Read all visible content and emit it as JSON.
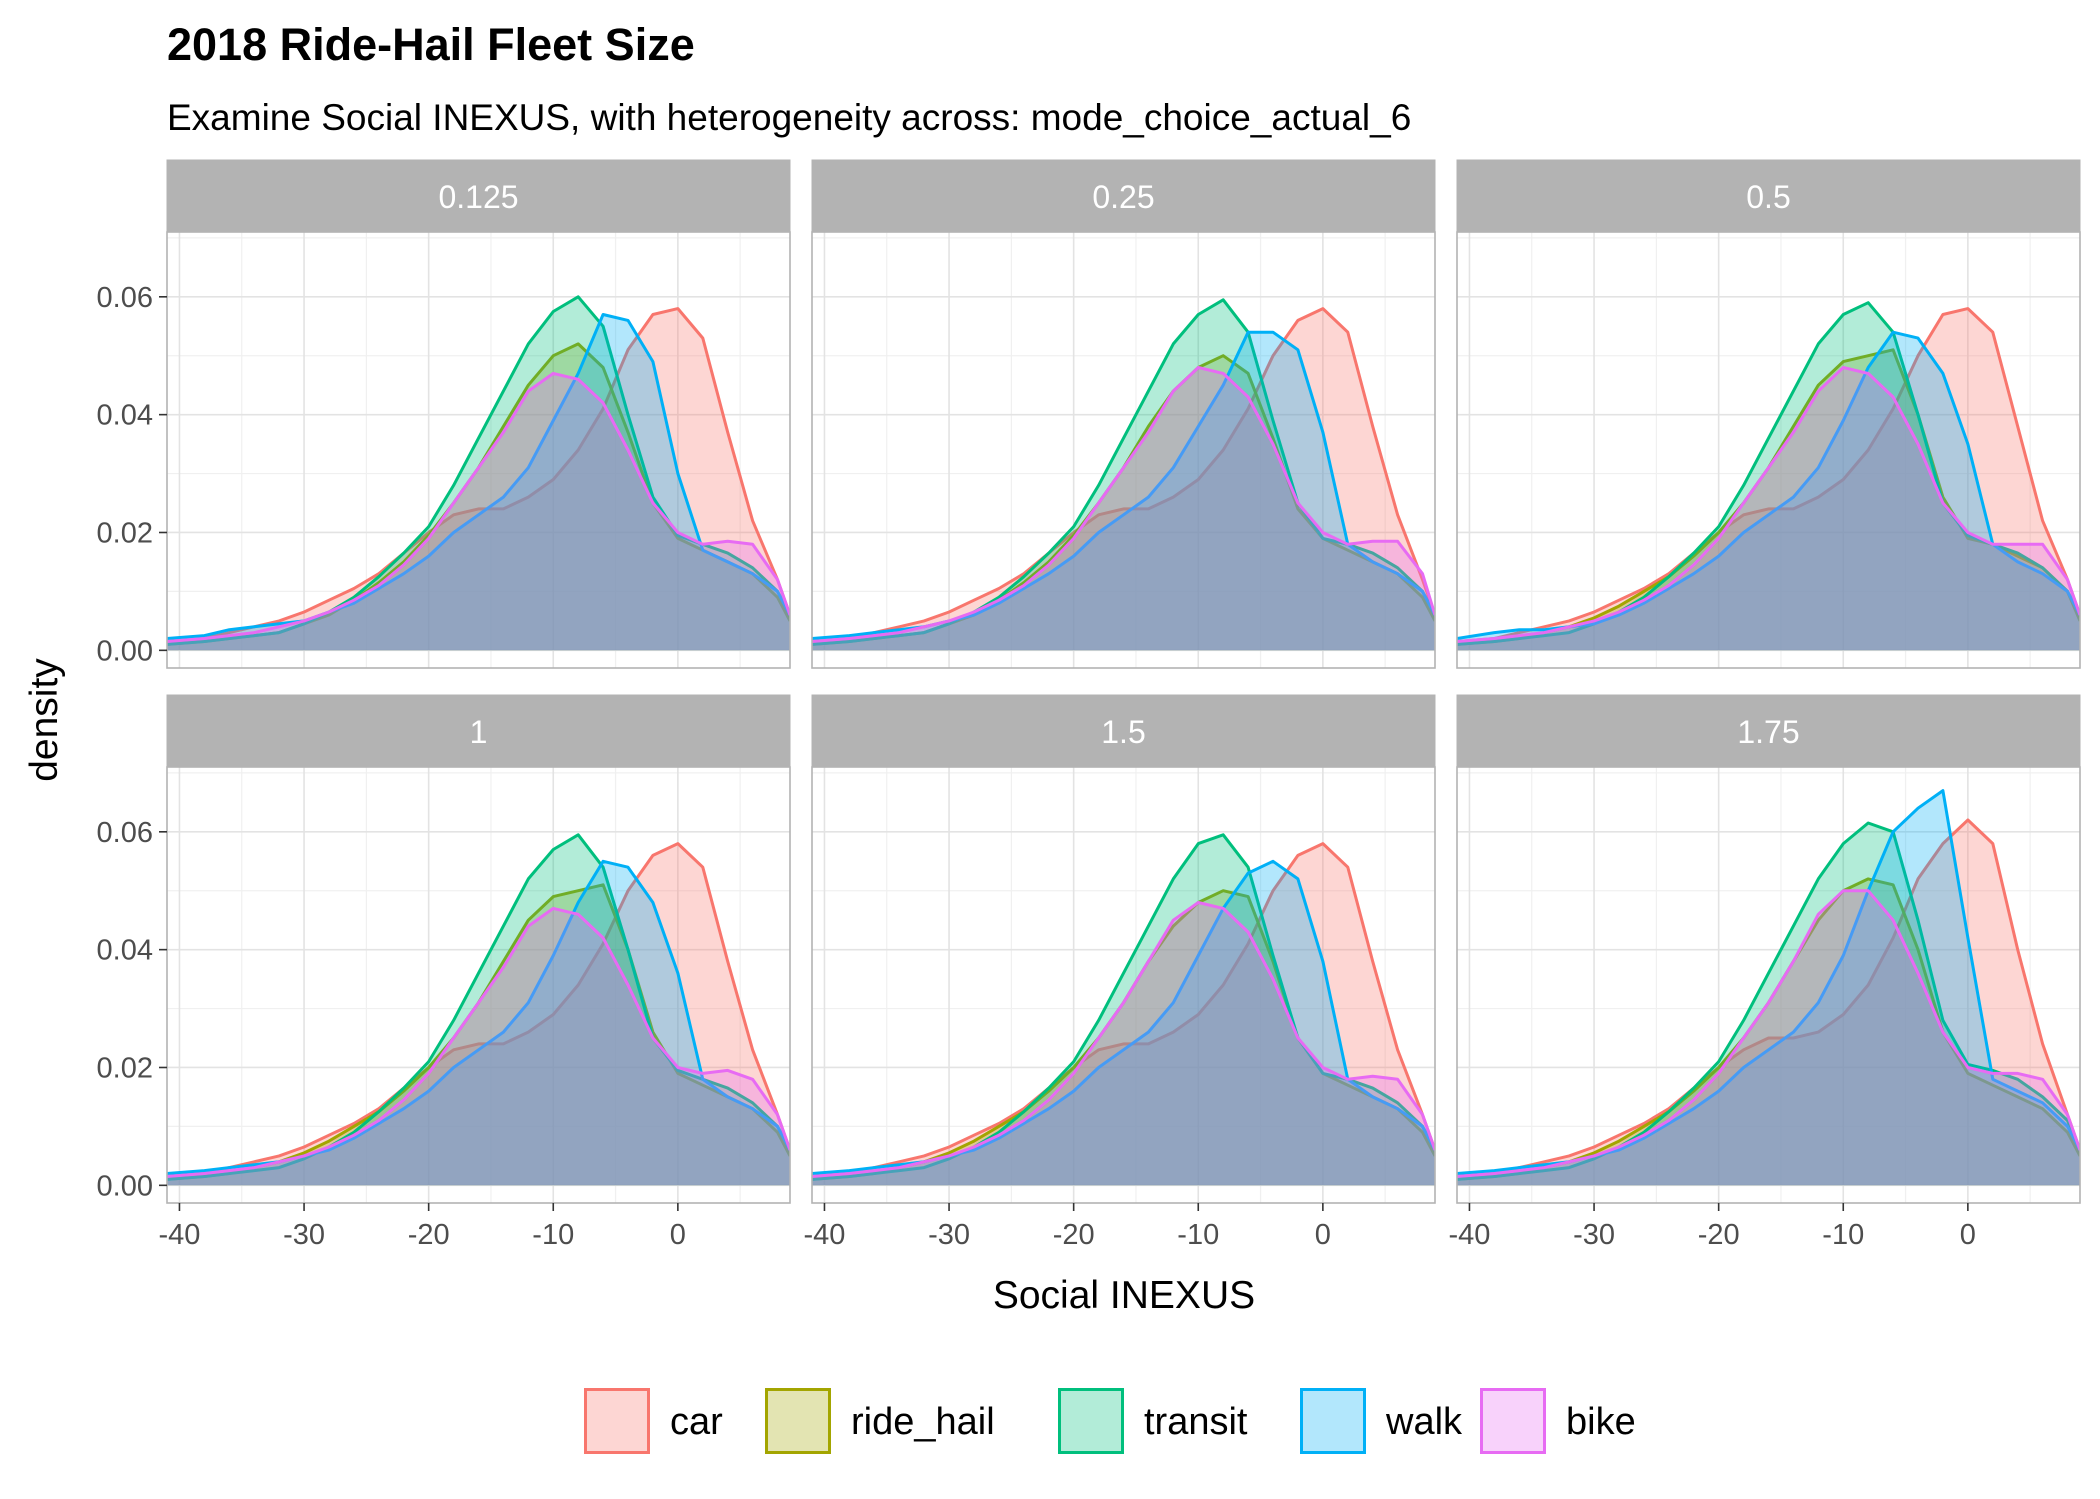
{
  "chart_data": {
    "type": "area",
    "title": "2018 Ride-Hail Fleet Size",
    "subtitle": "Examine Social INEXUS, with heterogeneity across: mode_choice_actual_6",
    "xlabel": "Social INEXUS",
    "ylabel": "density",
    "xlim": [
      -41,
      9
    ],
    "ylim": [
      -0.003,
      0.071
    ],
    "x_ticks": [
      -40,
      -30,
      -20,
      -10,
      0
    ],
    "x_tick_labels": [
      "-40",
      "-30",
      "-20",
      "-10",
      "0"
    ],
    "y_ticks": [
      0.0,
      0.02,
      0.04,
      0.06
    ],
    "y_tick_labels": [
      "0.00",
      "0.02",
      "0.04",
      "0.06"
    ],
    "grid": true,
    "legend_position": "bottom",
    "fill_opacity": 0.3,
    "x": [
      -41,
      -38,
      -36,
      -34,
      -32,
      -30,
      -28,
      -26,
      -24,
      -22,
      -20,
      -18,
      -16,
      -14,
      -12,
      -10,
      -8,
      -6,
      -4,
      -2,
      0,
      2,
      4,
      6,
      8,
      9
    ],
    "colors": {
      "car": "#F8766D",
      "ride_hail": "#A3A500",
      "transit": "#00BF7D",
      "walk": "#00B0F6",
      "bike": "#E76BF3"
    },
    "legend": [
      {
        "key": "car",
        "label": "car"
      },
      {
        "key": "ride_hail",
        "label": "ride_hail"
      },
      {
        "key": "transit",
        "label": "transit"
      },
      {
        "key": "walk",
        "label": "walk"
      },
      {
        "key": "bike",
        "label": "bike"
      }
    ],
    "panels": [
      {
        "label": "0.125",
        "series": {
          "car": [
            0.0015,
            0.002,
            0.003,
            0.004,
            0.005,
            0.0065,
            0.0085,
            0.0105,
            0.013,
            0.0165,
            0.02,
            0.023,
            0.024,
            0.024,
            0.026,
            0.029,
            0.034,
            0.041,
            0.051,
            0.057,
            0.058,
            0.053,
            0.037,
            0.022,
            0.012,
            0.006
          ],
          "ride_hail": [
            0.001,
            0.0015,
            0.002,
            0.0025,
            0.003,
            0.0045,
            0.006,
            0.0085,
            0.0115,
            0.015,
            0.0195,
            0.025,
            0.031,
            0.038,
            0.045,
            0.05,
            0.052,
            0.048,
            0.037,
            0.025,
            0.019,
            0.017,
            0.015,
            0.013,
            0.009,
            0.005
          ],
          "transit": [
            0.001,
            0.0015,
            0.002,
            0.0025,
            0.003,
            0.0045,
            0.0065,
            0.009,
            0.0125,
            0.0165,
            0.021,
            0.028,
            0.036,
            0.044,
            0.052,
            0.0575,
            0.06,
            0.055,
            0.04,
            0.026,
            0.0195,
            0.018,
            0.0165,
            0.014,
            0.01,
            0.006
          ],
          "walk": [
            0.002,
            0.0025,
            0.0035,
            0.004,
            0.0045,
            0.005,
            0.0065,
            0.008,
            0.0105,
            0.013,
            0.016,
            0.02,
            0.023,
            0.026,
            0.031,
            0.039,
            0.047,
            0.057,
            0.056,
            0.049,
            0.03,
            0.017,
            0.015,
            0.013,
            0.01,
            0.006
          ],
          "bike": [
            0.0015,
            0.002,
            0.0025,
            0.003,
            0.004,
            0.005,
            0.0065,
            0.0085,
            0.011,
            0.0145,
            0.019,
            0.025,
            0.031,
            0.037,
            0.044,
            0.047,
            0.046,
            0.042,
            0.034,
            0.025,
            0.02,
            0.018,
            0.0185,
            0.018,
            0.012,
            0.006
          ]
        }
      },
      {
        "label": "0.25",
        "series": {
          "car": [
            0.0015,
            0.002,
            0.003,
            0.004,
            0.005,
            0.0065,
            0.0085,
            0.0105,
            0.013,
            0.0165,
            0.02,
            0.023,
            0.024,
            0.024,
            0.026,
            0.029,
            0.034,
            0.041,
            0.05,
            0.056,
            0.058,
            0.054,
            0.038,
            0.023,
            0.012,
            0.006
          ],
          "ride_hail": [
            0.001,
            0.0015,
            0.002,
            0.0025,
            0.003,
            0.0045,
            0.006,
            0.0085,
            0.0115,
            0.015,
            0.0195,
            0.025,
            0.031,
            0.038,
            0.044,
            0.048,
            0.05,
            0.047,
            0.036,
            0.024,
            0.019,
            0.017,
            0.015,
            0.013,
            0.009,
            0.005
          ],
          "transit": [
            0.001,
            0.0015,
            0.002,
            0.0025,
            0.003,
            0.0045,
            0.0065,
            0.009,
            0.0125,
            0.0165,
            0.021,
            0.028,
            0.036,
            0.044,
            0.052,
            0.057,
            0.0595,
            0.054,
            0.039,
            0.025,
            0.019,
            0.018,
            0.0165,
            0.014,
            0.01,
            0.006
          ],
          "walk": [
            0.002,
            0.0025,
            0.003,
            0.0035,
            0.004,
            0.005,
            0.006,
            0.008,
            0.0105,
            0.013,
            0.016,
            0.02,
            0.023,
            0.026,
            0.031,
            0.038,
            0.045,
            0.054,
            0.054,
            0.051,
            0.037,
            0.018,
            0.015,
            0.013,
            0.01,
            0.006
          ],
          "bike": [
            0.0015,
            0.002,
            0.0025,
            0.003,
            0.004,
            0.005,
            0.0065,
            0.0085,
            0.011,
            0.0145,
            0.019,
            0.025,
            0.031,
            0.037,
            0.044,
            0.048,
            0.047,
            0.043,
            0.035,
            0.025,
            0.02,
            0.018,
            0.0185,
            0.0185,
            0.013,
            0.006
          ]
        }
      },
      {
        "label": "0.5",
        "series": {
          "car": [
            0.0015,
            0.002,
            0.003,
            0.004,
            0.005,
            0.0065,
            0.0085,
            0.0105,
            0.013,
            0.0165,
            0.02,
            0.023,
            0.024,
            0.024,
            0.026,
            0.029,
            0.034,
            0.041,
            0.05,
            0.057,
            0.058,
            0.054,
            0.038,
            0.022,
            0.012,
            0.006
          ],
          "ride_hail": [
            0.001,
            0.0015,
            0.002,
            0.003,
            0.004,
            0.0055,
            0.0075,
            0.01,
            0.0125,
            0.016,
            0.02,
            0.025,
            0.031,
            0.038,
            0.045,
            0.049,
            0.05,
            0.051,
            0.04,
            0.026,
            0.019,
            0.018,
            0.016,
            0.014,
            0.01,
            0.005
          ],
          "transit": [
            0.001,
            0.0015,
            0.002,
            0.0025,
            0.003,
            0.0045,
            0.0065,
            0.009,
            0.0125,
            0.0165,
            0.021,
            0.028,
            0.036,
            0.044,
            0.052,
            0.057,
            0.059,
            0.054,
            0.04,
            0.025,
            0.0195,
            0.018,
            0.0165,
            0.014,
            0.01,
            0.006
          ],
          "walk": [
            0.002,
            0.003,
            0.0035,
            0.0035,
            0.004,
            0.0045,
            0.006,
            0.008,
            0.0105,
            0.013,
            0.016,
            0.02,
            0.023,
            0.026,
            0.031,
            0.039,
            0.048,
            0.054,
            0.053,
            0.047,
            0.035,
            0.018,
            0.015,
            0.013,
            0.01,
            0.006
          ],
          "bike": [
            0.0015,
            0.002,
            0.0025,
            0.003,
            0.004,
            0.005,
            0.0065,
            0.0085,
            0.011,
            0.0145,
            0.019,
            0.025,
            0.031,
            0.037,
            0.044,
            0.048,
            0.047,
            0.043,
            0.035,
            0.025,
            0.02,
            0.018,
            0.018,
            0.018,
            0.012,
            0.006
          ]
        }
      },
      {
        "label": "1",
        "series": {
          "car": [
            0.0015,
            0.002,
            0.003,
            0.004,
            0.005,
            0.0065,
            0.0085,
            0.0105,
            0.013,
            0.0165,
            0.02,
            0.023,
            0.024,
            0.024,
            0.026,
            0.029,
            0.034,
            0.041,
            0.05,
            0.056,
            0.058,
            0.054,
            0.038,
            0.023,
            0.012,
            0.006
          ],
          "ride_hail": [
            0.001,
            0.0015,
            0.002,
            0.003,
            0.004,
            0.0055,
            0.0075,
            0.01,
            0.0125,
            0.016,
            0.02,
            0.025,
            0.031,
            0.038,
            0.045,
            0.049,
            0.05,
            0.051,
            0.04,
            0.026,
            0.019,
            0.017,
            0.015,
            0.013,
            0.009,
            0.005
          ],
          "transit": [
            0.001,
            0.0015,
            0.002,
            0.0025,
            0.003,
            0.0045,
            0.0065,
            0.009,
            0.0125,
            0.0165,
            0.021,
            0.028,
            0.036,
            0.044,
            0.052,
            0.057,
            0.0595,
            0.054,
            0.04,
            0.025,
            0.0195,
            0.018,
            0.0165,
            0.014,
            0.01,
            0.006
          ],
          "walk": [
            0.002,
            0.0025,
            0.003,
            0.0035,
            0.004,
            0.005,
            0.006,
            0.008,
            0.0105,
            0.013,
            0.016,
            0.02,
            0.023,
            0.026,
            0.031,
            0.039,
            0.048,
            0.055,
            0.054,
            0.048,
            0.036,
            0.018,
            0.015,
            0.013,
            0.01,
            0.006
          ],
          "bike": [
            0.0015,
            0.002,
            0.0025,
            0.003,
            0.004,
            0.005,
            0.0065,
            0.0085,
            0.011,
            0.0145,
            0.019,
            0.025,
            0.031,
            0.037,
            0.044,
            0.047,
            0.046,
            0.042,
            0.034,
            0.025,
            0.02,
            0.019,
            0.0195,
            0.018,
            0.012,
            0.006
          ]
        }
      },
      {
        "label": "1.5",
        "series": {
          "car": [
            0.0015,
            0.002,
            0.003,
            0.004,
            0.005,
            0.0065,
            0.0085,
            0.0105,
            0.013,
            0.0165,
            0.02,
            0.023,
            0.024,
            0.024,
            0.026,
            0.029,
            0.034,
            0.041,
            0.05,
            0.056,
            0.058,
            0.054,
            0.038,
            0.023,
            0.012,
            0.006
          ],
          "ride_hail": [
            0.001,
            0.0015,
            0.002,
            0.003,
            0.004,
            0.0055,
            0.0075,
            0.01,
            0.0125,
            0.016,
            0.02,
            0.025,
            0.031,
            0.038,
            0.044,
            0.048,
            0.05,
            0.049,
            0.038,
            0.025,
            0.019,
            0.017,
            0.015,
            0.013,
            0.009,
            0.005
          ],
          "transit": [
            0.001,
            0.0015,
            0.002,
            0.0025,
            0.003,
            0.0045,
            0.0065,
            0.009,
            0.0125,
            0.0165,
            0.021,
            0.028,
            0.036,
            0.044,
            0.052,
            0.058,
            0.0595,
            0.054,
            0.039,
            0.025,
            0.019,
            0.018,
            0.0165,
            0.014,
            0.01,
            0.006
          ],
          "walk": [
            0.002,
            0.0025,
            0.003,
            0.0035,
            0.004,
            0.005,
            0.006,
            0.008,
            0.0105,
            0.013,
            0.016,
            0.02,
            0.023,
            0.026,
            0.031,
            0.039,
            0.047,
            0.053,
            0.055,
            0.052,
            0.038,
            0.018,
            0.015,
            0.013,
            0.01,
            0.006
          ],
          "bike": [
            0.0015,
            0.002,
            0.0025,
            0.003,
            0.004,
            0.005,
            0.0065,
            0.0085,
            0.011,
            0.0145,
            0.019,
            0.025,
            0.031,
            0.038,
            0.045,
            0.048,
            0.047,
            0.043,
            0.035,
            0.025,
            0.02,
            0.018,
            0.0185,
            0.018,
            0.012,
            0.006
          ]
        }
      },
      {
        "label": "1.75",
        "series": {
          "car": [
            0.0015,
            0.002,
            0.003,
            0.004,
            0.005,
            0.0065,
            0.0085,
            0.0105,
            0.013,
            0.0165,
            0.02,
            0.023,
            0.025,
            0.025,
            0.026,
            0.029,
            0.034,
            0.042,
            0.052,
            0.058,
            0.062,
            0.058,
            0.04,
            0.024,
            0.012,
            0.006
          ],
          "ride_hail": [
            0.001,
            0.0015,
            0.002,
            0.003,
            0.004,
            0.0055,
            0.0075,
            0.01,
            0.0125,
            0.016,
            0.02,
            0.025,
            0.031,
            0.038,
            0.045,
            0.05,
            0.052,
            0.051,
            0.04,
            0.026,
            0.019,
            0.017,
            0.015,
            0.013,
            0.009,
            0.005
          ],
          "transit": [
            0.001,
            0.0015,
            0.002,
            0.0025,
            0.003,
            0.0045,
            0.0065,
            0.009,
            0.0125,
            0.0165,
            0.021,
            0.028,
            0.036,
            0.044,
            0.052,
            0.058,
            0.0615,
            0.06,
            0.045,
            0.028,
            0.0205,
            0.0195,
            0.018,
            0.015,
            0.011,
            0.006
          ],
          "walk": [
            0.002,
            0.0025,
            0.003,
            0.0035,
            0.004,
            0.005,
            0.006,
            0.008,
            0.0105,
            0.013,
            0.016,
            0.02,
            0.023,
            0.026,
            0.031,
            0.039,
            0.05,
            0.06,
            0.064,
            0.067,
            0.042,
            0.018,
            0.016,
            0.014,
            0.01,
            0.006
          ],
          "bike": [
            0.0015,
            0.002,
            0.0025,
            0.003,
            0.004,
            0.005,
            0.0065,
            0.0085,
            0.011,
            0.0145,
            0.019,
            0.025,
            0.031,
            0.038,
            0.046,
            0.05,
            0.05,
            0.045,
            0.036,
            0.026,
            0.02,
            0.019,
            0.019,
            0.018,
            0.012,
            0.006
          ]
        }
      }
    ]
  }
}
